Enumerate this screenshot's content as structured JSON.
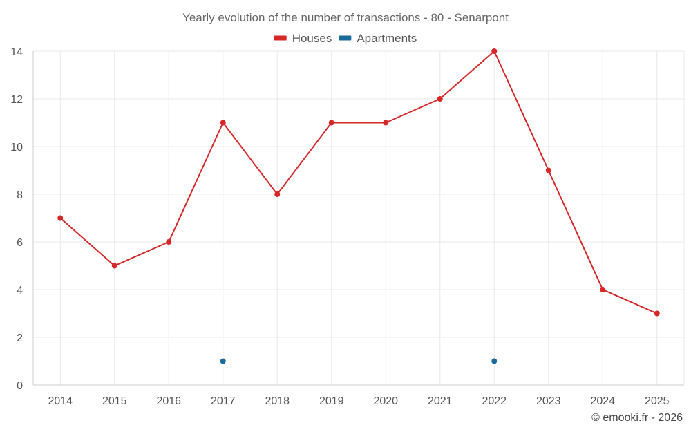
{
  "chart_data": {
    "type": "line",
    "title": "Yearly evolution of the number of transactions - 80 - Senarpont",
    "categories": [
      "2014",
      "2015",
      "2016",
      "2017",
      "2018",
      "2019",
      "2020",
      "2021",
      "2022",
      "2023",
      "2024",
      "2025"
    ],
    "ylim": [
      0,
      14
    ],
    "yticks": [
      0,
      2,
      4,
      6,
      8,
      10,
      12,
      14
    ],
    "grid": true,
    "legend_position": "top-center",
    "series": [
      {
        "name": "Houses",
        "color": "#d62728",
        "values": [
          7,
          5,
          6,
          11,
          8,
          11,
          11,
          12,
          14,
          9,
          4,
          3
        ],
        "line": true
      },
      {
        "name": "Apartments",
        "color": "#1a6a9a",
        "values": [
          null,
          null,
          null,
          1,
          null,
          null,
          null,
          null,
          1,
          null,
          null,
          null
        ],
        "line": false
      }
    ]
  },
  "credit": "© emooki.fr - 2026"
}
